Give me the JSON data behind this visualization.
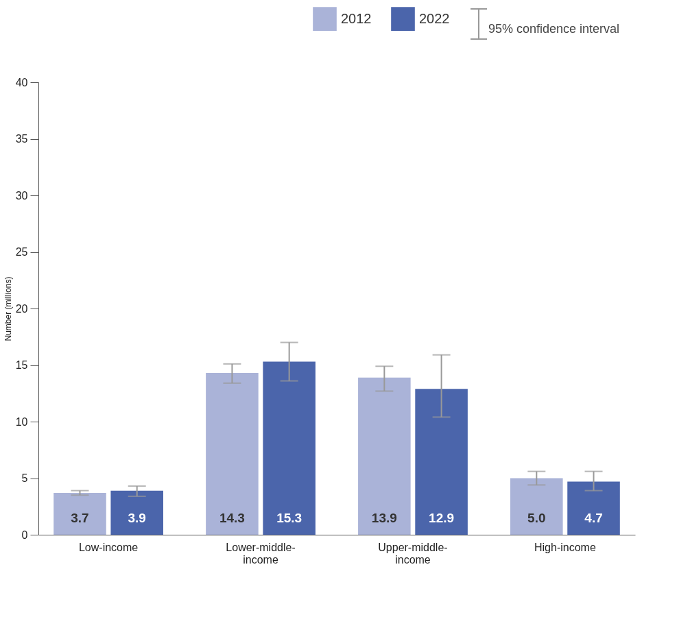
{
  "chart_data": {
    "type": "bar",
    "ylabel": "Number (millions)",
    "categories": [
      "Low-income",
      "Lower-middle-income",
      "Upper-middle-income",
      "High-income"
    ],
    "series": [
      {
        "name": "2012",
        "color": "#aab3d8",
        "values": [
          3.7,
          14.3,
          13.9,
          5.0
        ],
        "value_labels": [
          "3.7",
          "14.3",
          "13.9",
          "5.0"
        ],
        "errors": [
          [
            3.5,
            3.9
          ],
          [
            13.4,
            15.1
          ],
          [
            12.7,
            14.9
          ],
          [
            4.4,
            5.6
          ]
        ]
      },
      {
        "name": "2022",
        "color": "#4b65ab",
        "values": [
          3.9,
          15.3,
          12.9,
          4.7
        ],
        "value_labels": [
          "3.9",
          "15.3",
          "12.9",
          "4.7"
        ],
        "errors": [
          [
            3.4,
            4.3
          ],
          [
            13.6,
            17.0
          ],
          [
            10.4,
            15.9
          ],
          [
            3.9,
            5.6
          ]
        ]
      }
    ],
    "ylim": [
      0,
      40
    ],
    "yticks": [
      0,
      5,
      10,
      15,
      20,
      25,
      30,
      35,
      40
    ],
    "grid": false,
    "legend": "top right",
    "annotations": [
      "95% confidence interval"
    ]
  }
}
